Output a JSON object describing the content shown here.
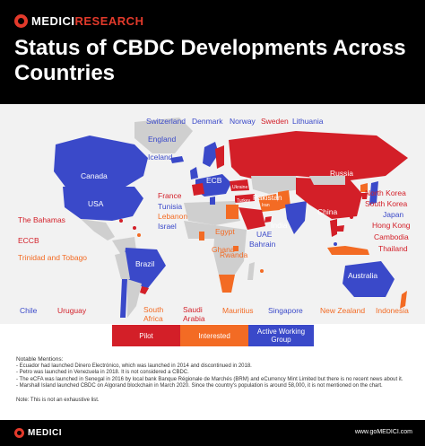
{
  "header": {
    "brand_main": "MEDICI",
    "brand_sub": "RESEARCH",
    "title": "Status of CBDC Developments Across Countries"
  },
  "chart_data": {
    "type": "map",
    "title": "Status of CBDC Developments Across Countries",
    "legend": [
      {
        "label": "Pilot",
        "color": "#d31f28"
      },
      {
        "label": "Interested",
        "color": "#f36b24"
      },
      {
        "label": "Active Working Group",
        "color": "#3a49c9"
      }
    ],
    "labels": [
      {
        "text": "Switzerland",
        "status": "Active Working Group"
      },
      {
        "text": "Denmark",
        "status": "Active Working Group"
      },
      {
        "text": "Norway",
        "status": "Active Working Group"
      },
      {
        "text": "Sweden",
        "status": "Pilot"
      },
      {
        "text": "Lithuania",
        "status": "Active Working Group"
      },
      {
        "text": "England",
        "status": "Active Working Group"
      },
      {
        "text": "Iceland",
        "status": "Active Working Group"
      },
      {
        "text": "Canada",
        "status": "Active Working Group"
      },
      {
        "text": "USA",
        "status": "Active Working Group"
      },
      {
        "text": "ECB",
        "status": "Active Working Group"
      },
      {
        "text": "Russia",
        "status": "Pilot"
      },
      {
        "text": "France",
        "status": "Pilot"
      },
      {
        "text": "Tunisia",
        "status": "Active Working Group"
      },
      {
        "text": "Lebanon",
        "status": "Interested"
      },
      {
        "text": "Israel",
        "status": "Active Working Group"
      },
      {
        "text": "Ukraine",
        "status": "Pilot"
      },
      {
        "text": "Turkey",
        "status": "Pilot"
      },
      {
        "text": "Iran",
        "status": "Interested"
      },
      {
        "text": "Pakistan",
        "status": "Interested"
      },
      {
        "text": "China",
        "status": "Pilot"
      },
      {
        "text": "India",
        "status": "Active Working Group"
      },
      {
        "text": "UAE",
        "status": "Pilot"
      },
      {
        "text": "Bahrain",
        "status": "Active Working Group"
      },
      {
        "text": "North Korea",
        "status": "Interested"
      },
      {
        "text": "South Korea",
        "status": "Pilot"
      },
      {
        "text": "Japan",
        "status": "Active Working Group"
      },
      {
        "text": "Hong Kong",
        "status": "Pilot"
      },
      {
        "text": "Cambodia",
        "status": "Pilot"
      },
      {
        "text": "Thailand",
        "status": "Pilot"
      },
      {
        "text": "The Bahamas",
        "status": "Pilot"
      },
      {
        "text": "ECCB",
        "status": "Pilot"
      },
      {
        "text": "Trinidad and Tobago",
        "status": "Interested"
      },
      {
        "text": "Egypt",
        "status": "Interested"
      },
      {
        "text": "Ghana",
        "status": "Interested"
      },
      {
        "text": "Rwanda",
        "status": "Interested"
      },
      {
        "text": "Brazil",
        "status": "Active Working Group"
      },
      {
        "text": "Australia",
        "status": "Active Working Group"
      },
      {
        "text": "Chile",
        "status": "Active Working Group"
      },
      {
        "text": "Uruguay",
        "status": "Pilot"
      },
      {
        "text": "South Africa",
        "status": "Interested"
      },
      {
        "text": "Saudi Arabia",
        "status": "Pilot"
      },
      {
        "text": "Mauritius",
        "status": "Interested"
      },
      {
        "text": "Singapore",
        "status": "Active Working Group"
      },
      {
        "text": "New Zealand",
        "status": "Interested"
      },
      {
        "text": "Indonesia",
        "status": "Interested"
      }
    ]
  },
  "notes": {
    "heading": "Notable Mentions:",
    "items": [
      "- Ecuador had launched Dinero Electrónico, which was launched in 2014 and discontinued in 2018.",
      "- Petro was launched in Venezuela in 2018. It is not considered a CBDC.",
      "- The eCFA was launched in Senegal in 2016 by local bank Banque Régionale de Marchés (BRM) and eCurrency Mint Limited but there is no recent news about it.",
      "- Marshall Island launched CBDC on Algorand blockchain in March 2020. Since the country's population is around 58,000, it is not mentioned on the chart."
    ],
    "disclaimer": "Note: This is not an exhaustive list."
  },
  "footer": {
    "brand_main": "MEDICI",
    "url": "www.goMEDICI.com"
  },
  "colors": {
    "pilot": "#d31f28",
    "interested": "#f36b24",
    "active": "#3a49c9",
    "land": "#cfcfcf"
  }
}
